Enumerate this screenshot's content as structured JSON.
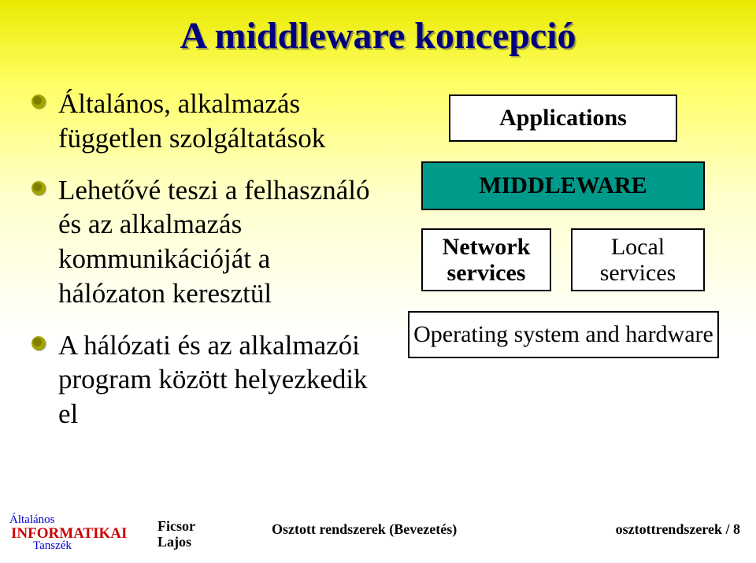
{
  "slide": {
    "title": "A middleware koncepció",
    "bullets": [
      "Általános, alkalmazás független szolgáltatások",
      "Lehetővé teszi a felhasználó és az alkalmazás kommunikációját a hálózaton keresztül",
      "A hálózati és az alkalmazói program között helyezkedik el"
    ],
    "diagram": {
      "applications": "Applications",
      "middleware": "MIDDLEWARE",
      "network": "Network services",
      "local": "Local services",
      "os": "Operating system and hardware",
      "colors": {
        "bg": "#ffffff",
        "border": "#000000",
        "mw_bg": "#009a8a"
      }
    },
    "footer": {
      "logo_line1a": "Általános",
      "logo_line2": "INFORMATIKAI",
      "logo_line3": "Tanszék",
      "author_line1": "Ficsor",
      "author_line2": "Lajos",
      "center": "Osztott rendszerek (Bevezetés)",
      "right_prefix": "osztottrendszerek",
      "right_sep": " / ",
      "right_page": "8"
    },
    "colors": {
      "title": "#000080",
      "slide_bg_top": "#eaea00",
      "slide_bg_mid": "#ffff66",
      "slide_bg_low": "#ffffff"
    }
  }
}
